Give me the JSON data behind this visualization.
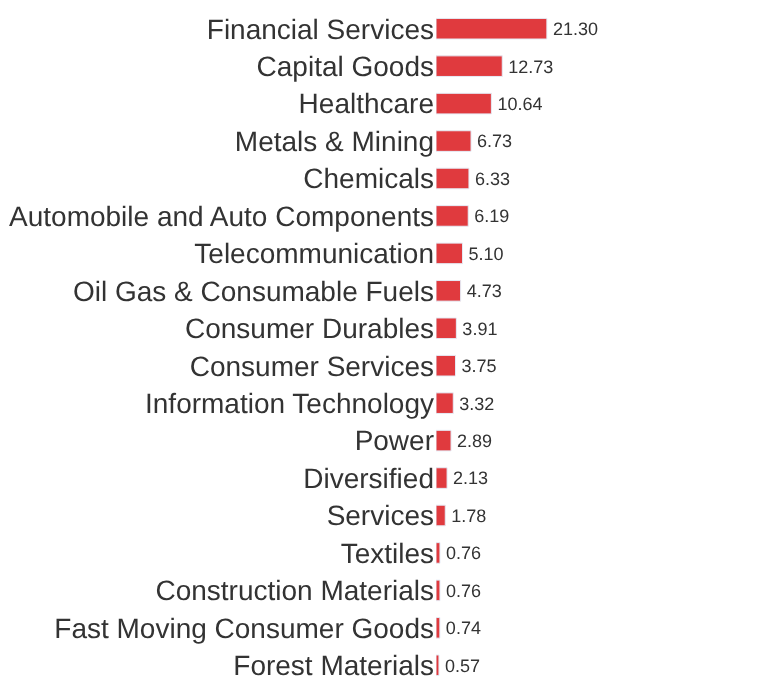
{
  "chart_data": {
    "type": "bar",
    "orientation": "horizontal",
    "categories": [
      "Financial Services",
      "Capital Goods",
      "Healthcare",
      "Metals & Mining",
      "Chemicals",
      "Automobile and Auto Components",
      "Telecommunication",
      "Oil Gas & Consumable Fuels",
      "Consumer Durables",
      "Consumer Services",
      "Information Technology",
      "Power",
      "Diversified",
      "Services",
      "Textiles",
      "Construction Materials",
      "Fast Moving Consumer Goods",
      "Forest Materials"
    ],
    "values": [
      21.3,
      12.73,
      10.64,
      6.73,
      6.33,
      6.19,
      5.1,
      4.73,
      3.91,
      3.75,
      3.32,
      2.89,
      2.13,
      1.78,
      0.76,
      0.76,
      0.74,
      0.57
    ],
    "value_labels": [
      "21.30",
      "12.73",
      "10.64",
      "6.73",
      "6.33",
      "6.19",
      "5.10",
      "4.73",
      "3.91",
      "3.75",
      "3.32",
      "2.89",
      "2.13",
      "1.78",
      "0.76",
      "0.76",
      "0.74",
      "0.57"
    ],
    "color": "#e03a3e"
  }
}
